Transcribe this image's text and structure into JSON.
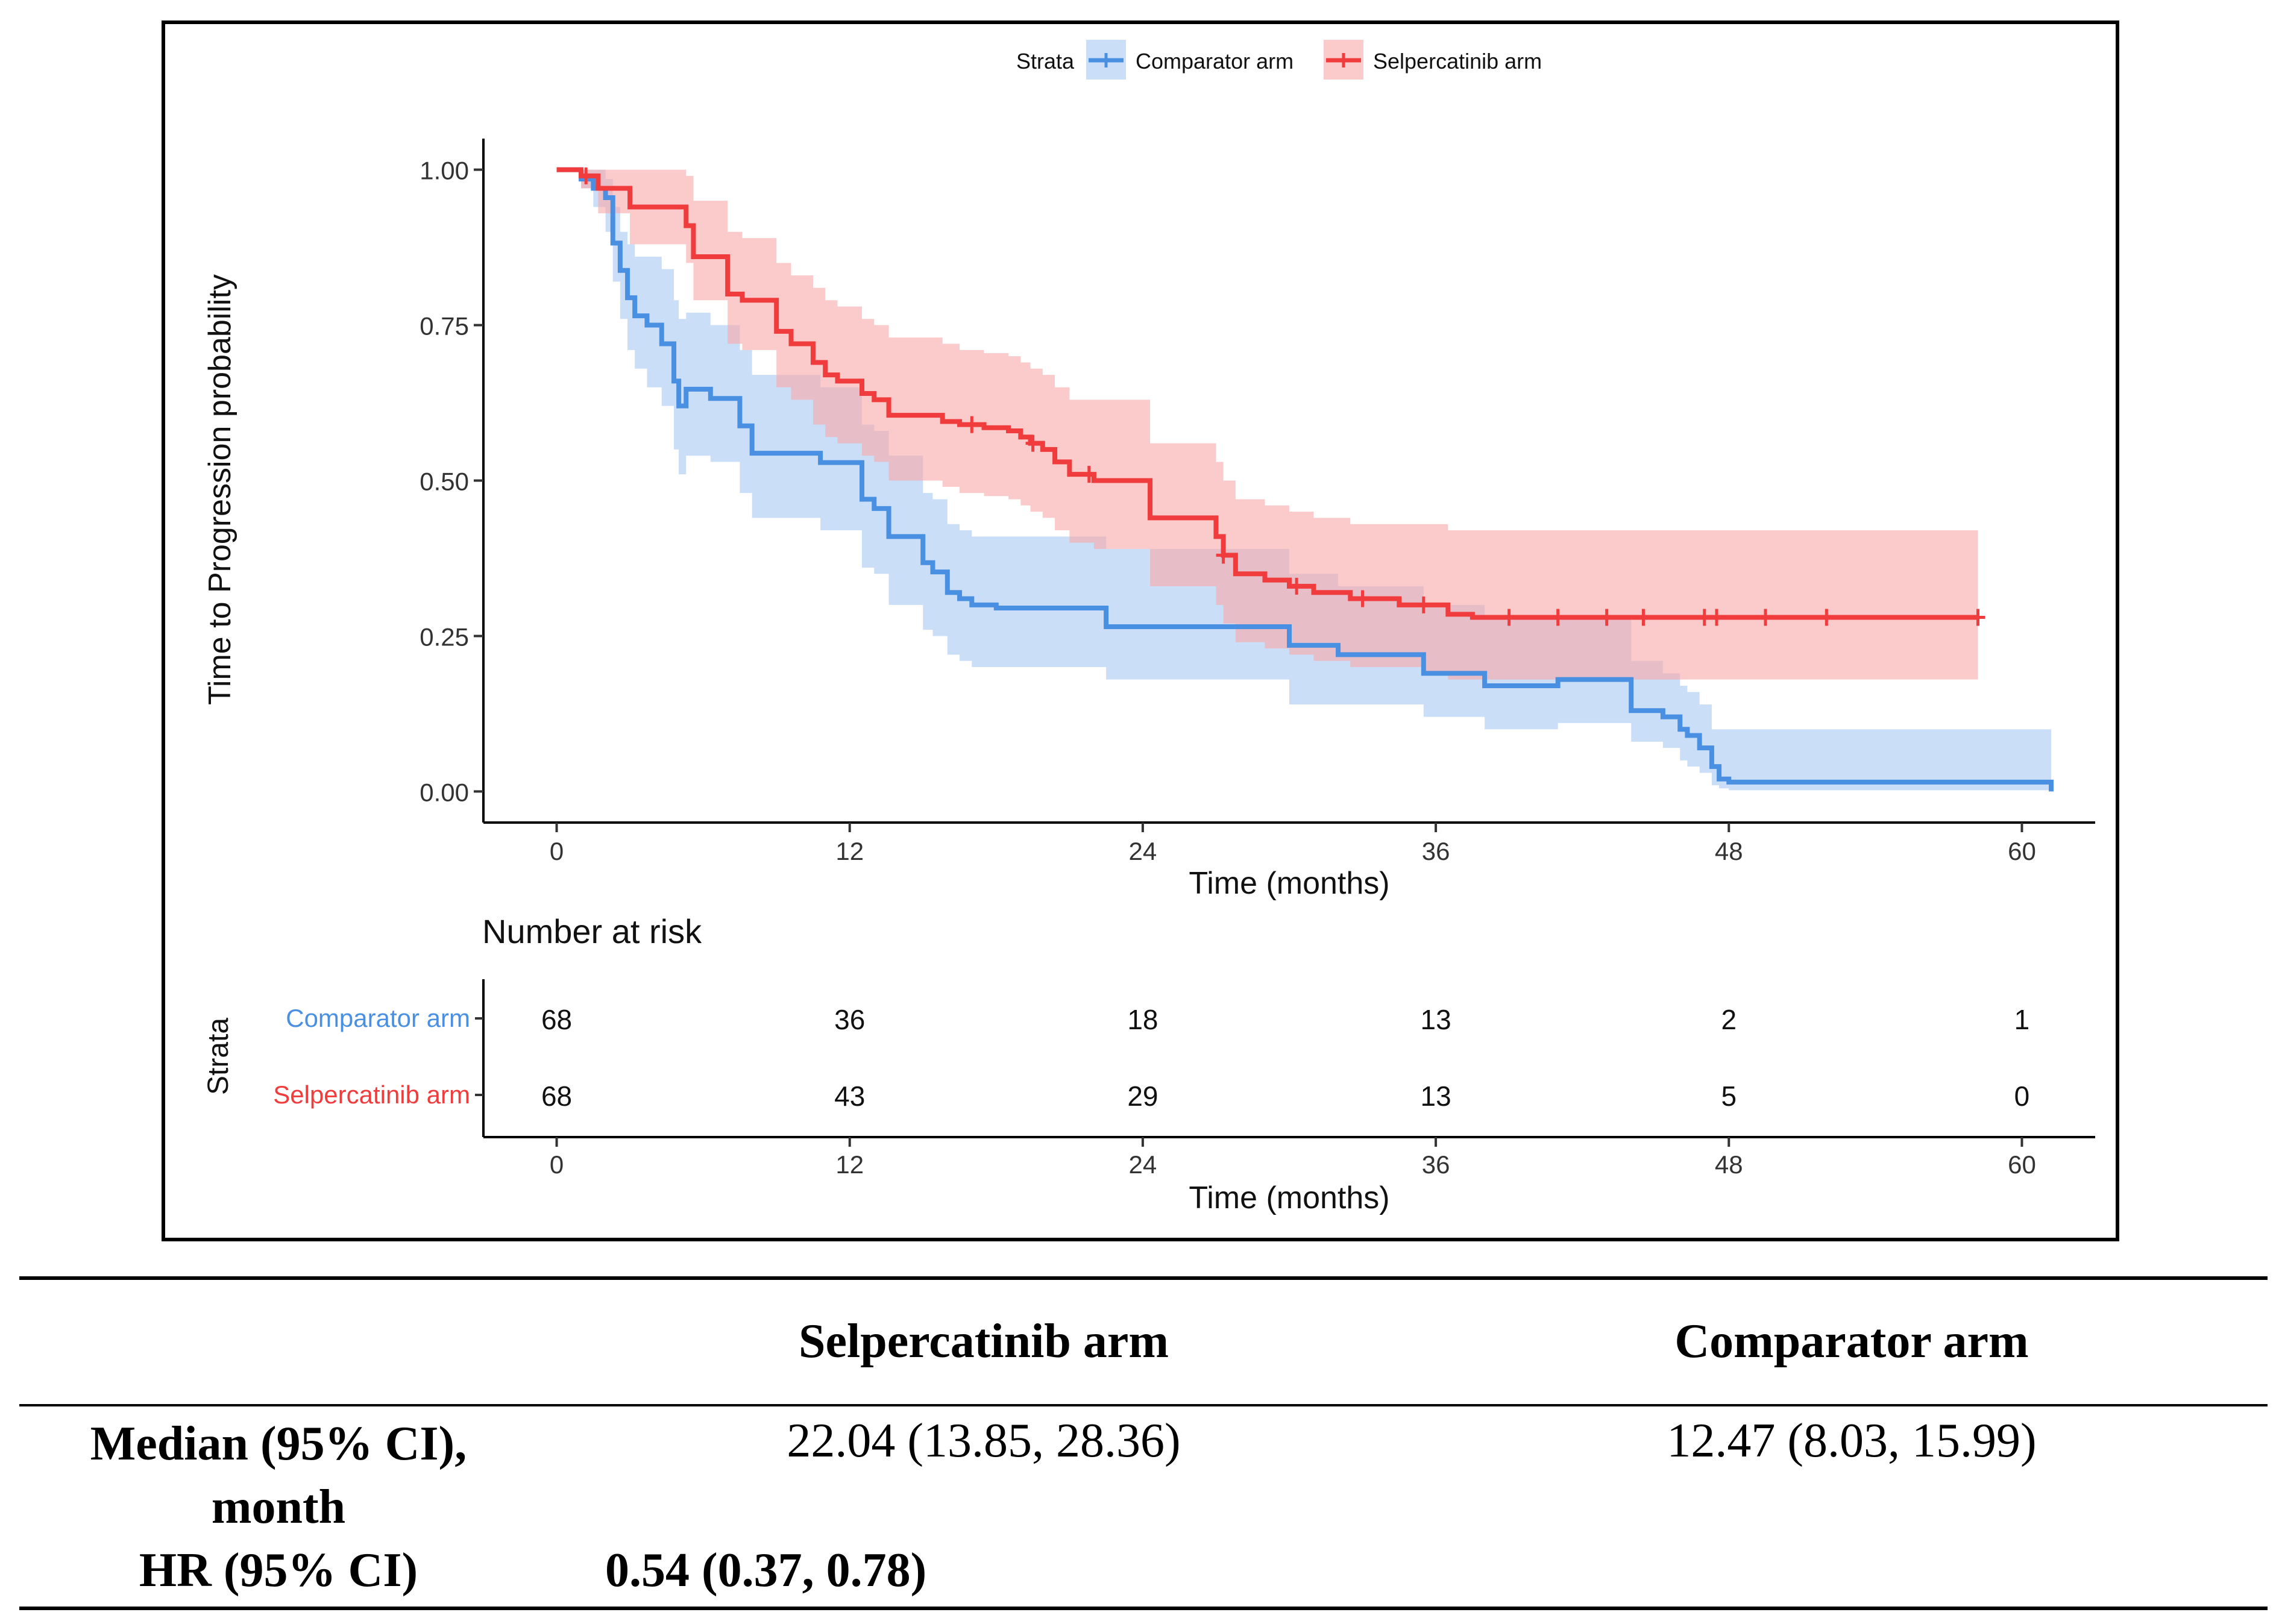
{
  "chart_data": {
    "type": "line",
    "subtype": "kaplan-meier",
    "xlabel": "Time (months)",
    "ylabel": "Time to Progression probability",
    "xlim": [
      -3,
      63
    ],
    "ylim": [
      -0.05,
      1.05
    ],
    "x_ticks": [
      0,
      12,
      24,
      36,
      48,
      60
    ],
    "y_ticks": [
      0.0,
      0.25,
      0.5,
      0.75,
      1.0
    ],
    "y_tick_labels": [
      "0.00",
      "0.25",
      "0.50",
      "0.75",
      "1.00"
    ],
    "grid": false,
    "legend": {
      "title": "Strata",
      "position": "top",
      "entries": [
        "Comparator arm",
        "Selpercatinib arm"
      ]
    },
    "series": [
      {
        "name": "Comparator arm",
        "color": "#4a90e2",
        "band_color": "#a9c9f2",
        "x": [
          0,
          1,
          1.5,
          2.0,
          2.3,
          2.6,
          2.9,
          3.2,
          3.7,
          4.3,
          4.8,
          5.0,
          5.3,
          6.3,
          7.5,
          8.0,
          8.5,
          9.0,
          10.8,
          11.4,
          12.5,
          13.0,
          13.6,
          15.0,
          15.4,
          16.0,
          16.5,
          17.0,
          18.0,
          22.5,
          30.0,
          32.0,
          33.0,
          35.5,
          38.0,
          41.0,
          44.0,
          45.3,
          46.0,
          46.3,
          46.8,
          47.3,
          47.6,
          48.0,
          51.0,
          55.0,
          60.0,
          61.2
        ],
        "y": [
          1.0,
          0.985,
          0.97,
          0.955,
          0.882,
          0.838,
          0.794,
          0.765,
          0.75,
          0.72,
          0.66,
          0.62,
          0.647,
          0.632,
          0.588,
          0.544,
          0.544,
          0.544,
          0.529,
          0.529,
          0.47,
          0.455,
          0.41,
          0.368,
          0.353,
          0.32,
          0.31,
          0.3,
          0.295,
          0.265,
          0.235,
          0.22,
          0.22,
          0.19,
          0.17,
          0.18,
          0.13,
          0.12,
          0.1,
          0.09,
          0.07,
          0.04,
          0.02,
          0.015,
          0.015,
          0.015,
          0.015,
          0.0
        ],
        "ci_lower": [
          1.0,
          0.97,
          0.94,
          0.9,
          0.82,
          0.76,
          0.71,
          0.68,
          0.65,
          0.62,
          0.55,
          0.51,
          0.54,
          0.53,
          0.48,
          0.44,
          0.44,
          0.44,
          0.42,
          0.42,
          0.36,
          0.35,
          0.3,
          0.26,
          0.25,
          0.22,
          0.21,
          0.2,
          0.2,
          0.18,
          0.14,
          0.14,
          0.14,
          0.12,
          0.1,
          0.11,
          0.08,
          0.07,
          0.05,
          0.04,
          0.03,
          0.01,
          0.005,
          0.002,
          0.002,
          0.002,
          0.002,
          0.0
        ],
        "ci_upper": [
          1.0,
          1.0,
          1.0,
          0.985,
          0.94,
          0.9,
          0.88,
          0.86,
          0.86,
          0.84,
          0.79,
          0.76,
          0.77,
          0.75,
          0.71,
          0.67,
          0.67,
          0.67,
          0.65,
          0.65,
          0.59,
          0.58,
          0.54,
          0.48,
          0.47,
          0.43,
          0.42,
          0.41,
          0.41,
          0.39,
          0.35,
          0.33,
          0.33,
          0.3,
          0.28,
          0.28,
          0.21,
          0.19,
          0.17,
          0.16,
          0.14,
          0.1,
          0.1,
          0.1,
          0.1,
          0.1,
          0.1,
          0.1
        ],
        "censored_x": []
      },
      {
        "name": "Selpercatinib arm",
        "color": "#f03c3c",
        "band_color": "#f8a9a9",
        "x": [
          0,
          1.0,
          1.7,
          2.0,
          3.0,
          3.4,
          5.3,
          5.6,
          6.3,
          7.0,
          7.6,
          8.0,
          9.0,
          9.6,
          10.5,
          11.0,
          11.5,
          12.5,
          13.0,
          13.6,
          15.8,
          16.5,
          17.0,
          17.5,
          18.5,
          19.0,
          19.4,
          19.9,
          20.4,
          21.0,
          22.0,
          24.3,
          25.4,
          27.0,
          27.3,
          27.8,
          29.0,
          30.0,
          31.0,
          32.5,
          34.5,
          35.5,
          36.5,
          37.5,
          41.0,
          45.0,
          50.0,
          55.0,
          58.2
        ],
        "y": [
          1.0,
          0.99,
          0.97,
          0.97,
          0.94,
          0.94,
          0.91,
          0.86,
          0.86,
          0.8,
          0.79,
          0.79,
          0.74,
          0.72,
          0.69,
          0.67,
          0.66,
          0.64,
          0.63,
          0.605,
          0.595,
          0.59,
          0.59,
          0.585,
          0.58,
          0.57,
          0.56,
          0.55,
          0.53,
          0.51,
          0.5,
          0.44,
          0.44,
          0.41,
          0.38,
          0.35,
          0.34,
          0.33,
          0.32,
          0.31,
          0.3,
          0.3,
          0.285,
          0.28,
          0.28,
          0.28,
          0.28,
          0.28,
          0.28
        ],
        "ci_lower": [
          1.0,
          0.97,
          0.93,
          0.93,
          0.88,
          0.88,
          0.85,
          0.79,
          0.79,
          0.72,
          0.71,
          0.71,
          0.65,
          0.63,
          0.59,
          0.57,
          0.56,
          0.54,
          0.53,
          0.5,
          0.49,
          0.48,
          0.48,
          0.475,
          0.47,
          0.46,
          0.45,
          0.44,
          0.42,
          0.4,
          0.39,
          0.33,
          0.33,
          0.3,
          0.27,
          0.24,
          0.23,
          0.22,
          0.21,
          0.2,
          0.2,
          0.19,
          0.18,
          0.18,
          0.18,
          0.18,
          0.18,
          0.18,
          0.18
        ],
        "ci_upper": [
          1.0,
          1.0,
          1.0,
          1.0,
          1.0,
          1.0,
          0.99,
          0.95,
          0.95,
          0.9,
          0.89,
          0.89,
          0.85,
          0.83,
          0.81,
          0.79,
          0.78,
          0.76,
          0.75,
          0.73,
          0.72,
          0.71,
          0.71,
          0.705,
          0.7,
          0.69,
          0.68,
          0.67,
          0.65,
          0.63,
          0.63,
          0.56,
          0.56,
          0.53,
          0.5,
          0.47,
          0.46,
          0.45,
          0.44,
          0.43,
          0.43,
          0.43,
          0.42,
          0.42,
          0.42,
          0.42,
          0.42,
          0.42,
          0.42
        ],
        "censored_x": [
          1.2,
          17.0,
          19.5,
          21.8,
          27.3,
          30.3,
          33.0,
          35.5,
          39.0,
          41.0,
          43.0,
          44.5,
          47.0,
          47.5,
          49.5,
          52.0,
          58.2
        ]
      }
    ],
    "risk_table": {
      "title": "Number at risk",
      "y_title": "Strata",
      "xlabel": "Time (months)",
      "times": [
        0,
        12,
        24,
        36,
        48,
        60
      ],
      "rows": [
        {
          "name": "Comparator arm",
          "color": "#4a90e2",
          "counts": [
            "68",
            "36",
            "18",
            "13",
            "2",
            "1"
          ]
        },
        {
          "name": "Selpercatinib arm",
          "color": "#f03c3c",
          "counts": [
            "68",
            "43",
            "29",
            "13",
            "5",
            "0"
          ]
        }
      ]
    }
  },
  "table": {
    "headers": [
      "",
      "Selpercatinib arm",
      "Comparator arm"
    ],
    "median_label_line1": "Median (95% CI),",
    "median_label_line2": "month",
    "median_selpercatinib": "22.04 (13.85, 28.36)",
    "median_comparator": "12.47 (8.03, 15.99)",
    "hr_label": "HR (95% CI)",
    "hr_value": "0.54 (0.37, 0.78)"
  }
}
